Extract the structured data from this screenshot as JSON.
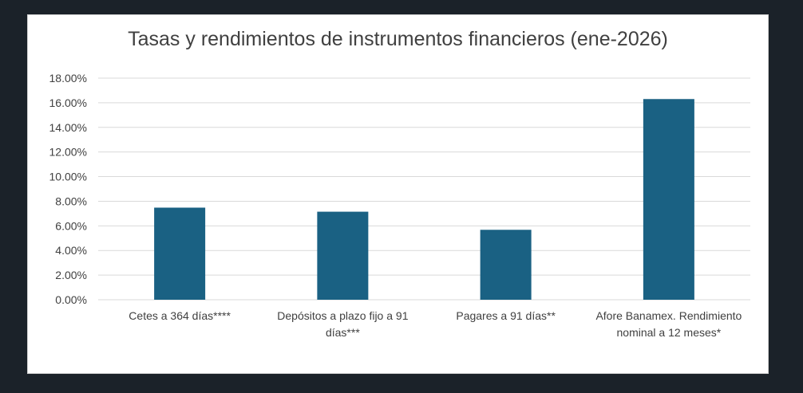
{
  "chart_data": {
    "type": "bar",
    "title": "Tasas y rendimientos de instrumentos financieros (ene-2026)",
    "categories": [
      "Cetes a 364 días****",
      "Depósitos a plazo fijo a 91 días***",
      "Pagares a 91 días**",
      "Afore Banamex. Rendimiento nominal a 12 meses*"
    ],
    "values": [
      0.0748,
      0.0715,
      0.0568,
      0.163
    ],
    "ylim": [
      0,
      0.18
    ],
    "ytick_values": [
      0,
      0.02,
      0.04,
      0.06,
      0.08,
      0.1,
      0.12,
      0.14,
      0.16,
      0.18
    ],
    "ytick_labels": [
      "0.00%",
      "2.00%",
      "4.00%",
      "6.00%",
      "8.00%",
      "10.00%",
      "12.00%",
      "14.00%",
      "16.00%",
      "18.00%"
    ],
    "xlabel": "",
    "ylabel": "",
    "grid": true,
    "legend": "none",
    "colors": {
      "bar": "#1a6183",
      "grid": "#d9d9d9",
      "text": "#404040",
      "frame_background": "#1b2229"
    }
  }
}
